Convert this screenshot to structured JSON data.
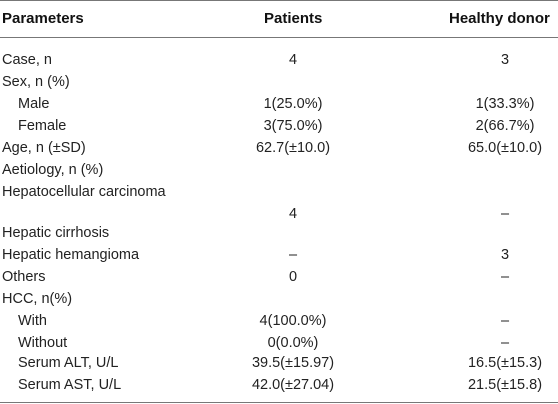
{
  "header": {
    "parameters": "Parameters",
    "patients": "Patients",
    "healthy_donor": "Healthy donor"
  },
  "rows": [
    {
      "param": "Case, n",
      "patients": "4",
      "donor": "3"
    },
    {
      "param": "Sex, n (%)",
      "patients": "",
      "donor": ""
    },
    {
      "param": "Male",
      "patients": "1(25.0%)",
      "donor": "1(33.3%)"
    },
    {
      "param": "Female",
      "patients": "3(75.0%)",
      "donor": "2(66.7%)"
    },
    {
      "param": "Age, n (±SD)",
      "patients": "62.7(±10.0)",
      "donor": "65.0(±10.0)"
    },
    {
      "param": "Aetiology, n (%)",
      "patients": "",
      "donor": ""
    },
    {
      "param": "Hepatocellular carcinoma",
      "patients": "",
      "donor": ""
    },
    {
      "param": "",
      "patients": "4",
      "donor": "–"
    },
    {
      "param": "Hepatic cirrhosis",
      "patients": "",
      "donor": ""
    },
    {
      "param": "Hepatic hemangioma",
      "patients": "–",
      "donor": "3"
    },
    {
      "param": "Others",
      "patients": "0",
      "donor": "–"
    },
    {
      "param": "HCC, n(%)",
      "patients": "",
      "donor": ""
    },
    {
      "param": "With",
      "patients": "4(100.0%)",
      "donor": "–"
    },
    {
      "param": "Without",
      "patients": "0(0.0%)",
      "donor": "–"
    },
    {
      "param": "Serum ALT, U/L",
      "patients": "39.5(±15.97)",
      "donor": "16.5(±15.3)"
    },
    {
      "param": "Serum AST, U/L",
      "patients": "42.0(±27.04)",
      "donor": "21.5(±15.8)"
    }
  ]
}
